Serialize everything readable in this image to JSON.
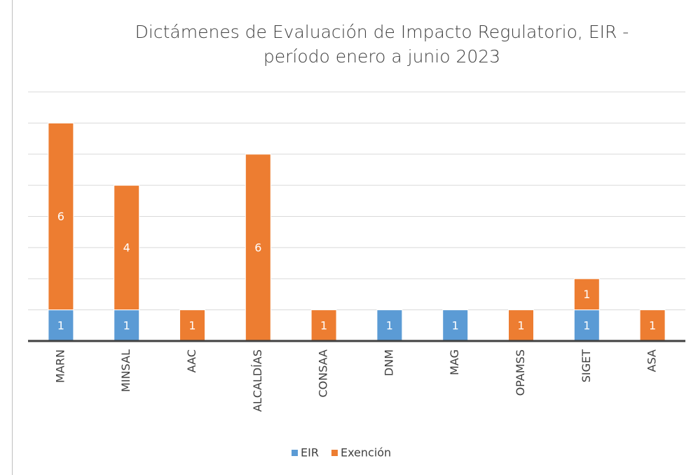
{
  "chart_data": {
    "type": "stacked_bar",
    "title": "Dictámenes de Evaluación de Impacto Regulatorio, EIR - período enero a junio 2023",
    "categories": [
      "MARN",
      "MINSAL",
      "AAC",
      "ALCALDÍAS",
      "CONSAA",
      "DNM",
      "MAG",
      "OPAMSS",
      "SIGET",
      "ASA"
    ],
    "series": [
      {
        "name": "EIR",
        "color": "#5b9bd5",
        "values": [
          1,
          1,
          null,
          null,
          null,
          1,
          1,
          null,
          1,
          null
        ]
      },
      {
        "name": "Exención",
        "color": "#ed7d31",
        "values": [
          6,
          4,
          1,
          6,
          1,
          null,
          null,
          1,
          1,
          1
        ]
      }
    ],
    "ylim": [
      0,
      8
    ],
    "yticks": [
      0,
      1,
      2,
      3,
      4,
      5,
      6,
      7,
      8
    ],
    "grid": true,
    "legend": "bottom"
  }
}
